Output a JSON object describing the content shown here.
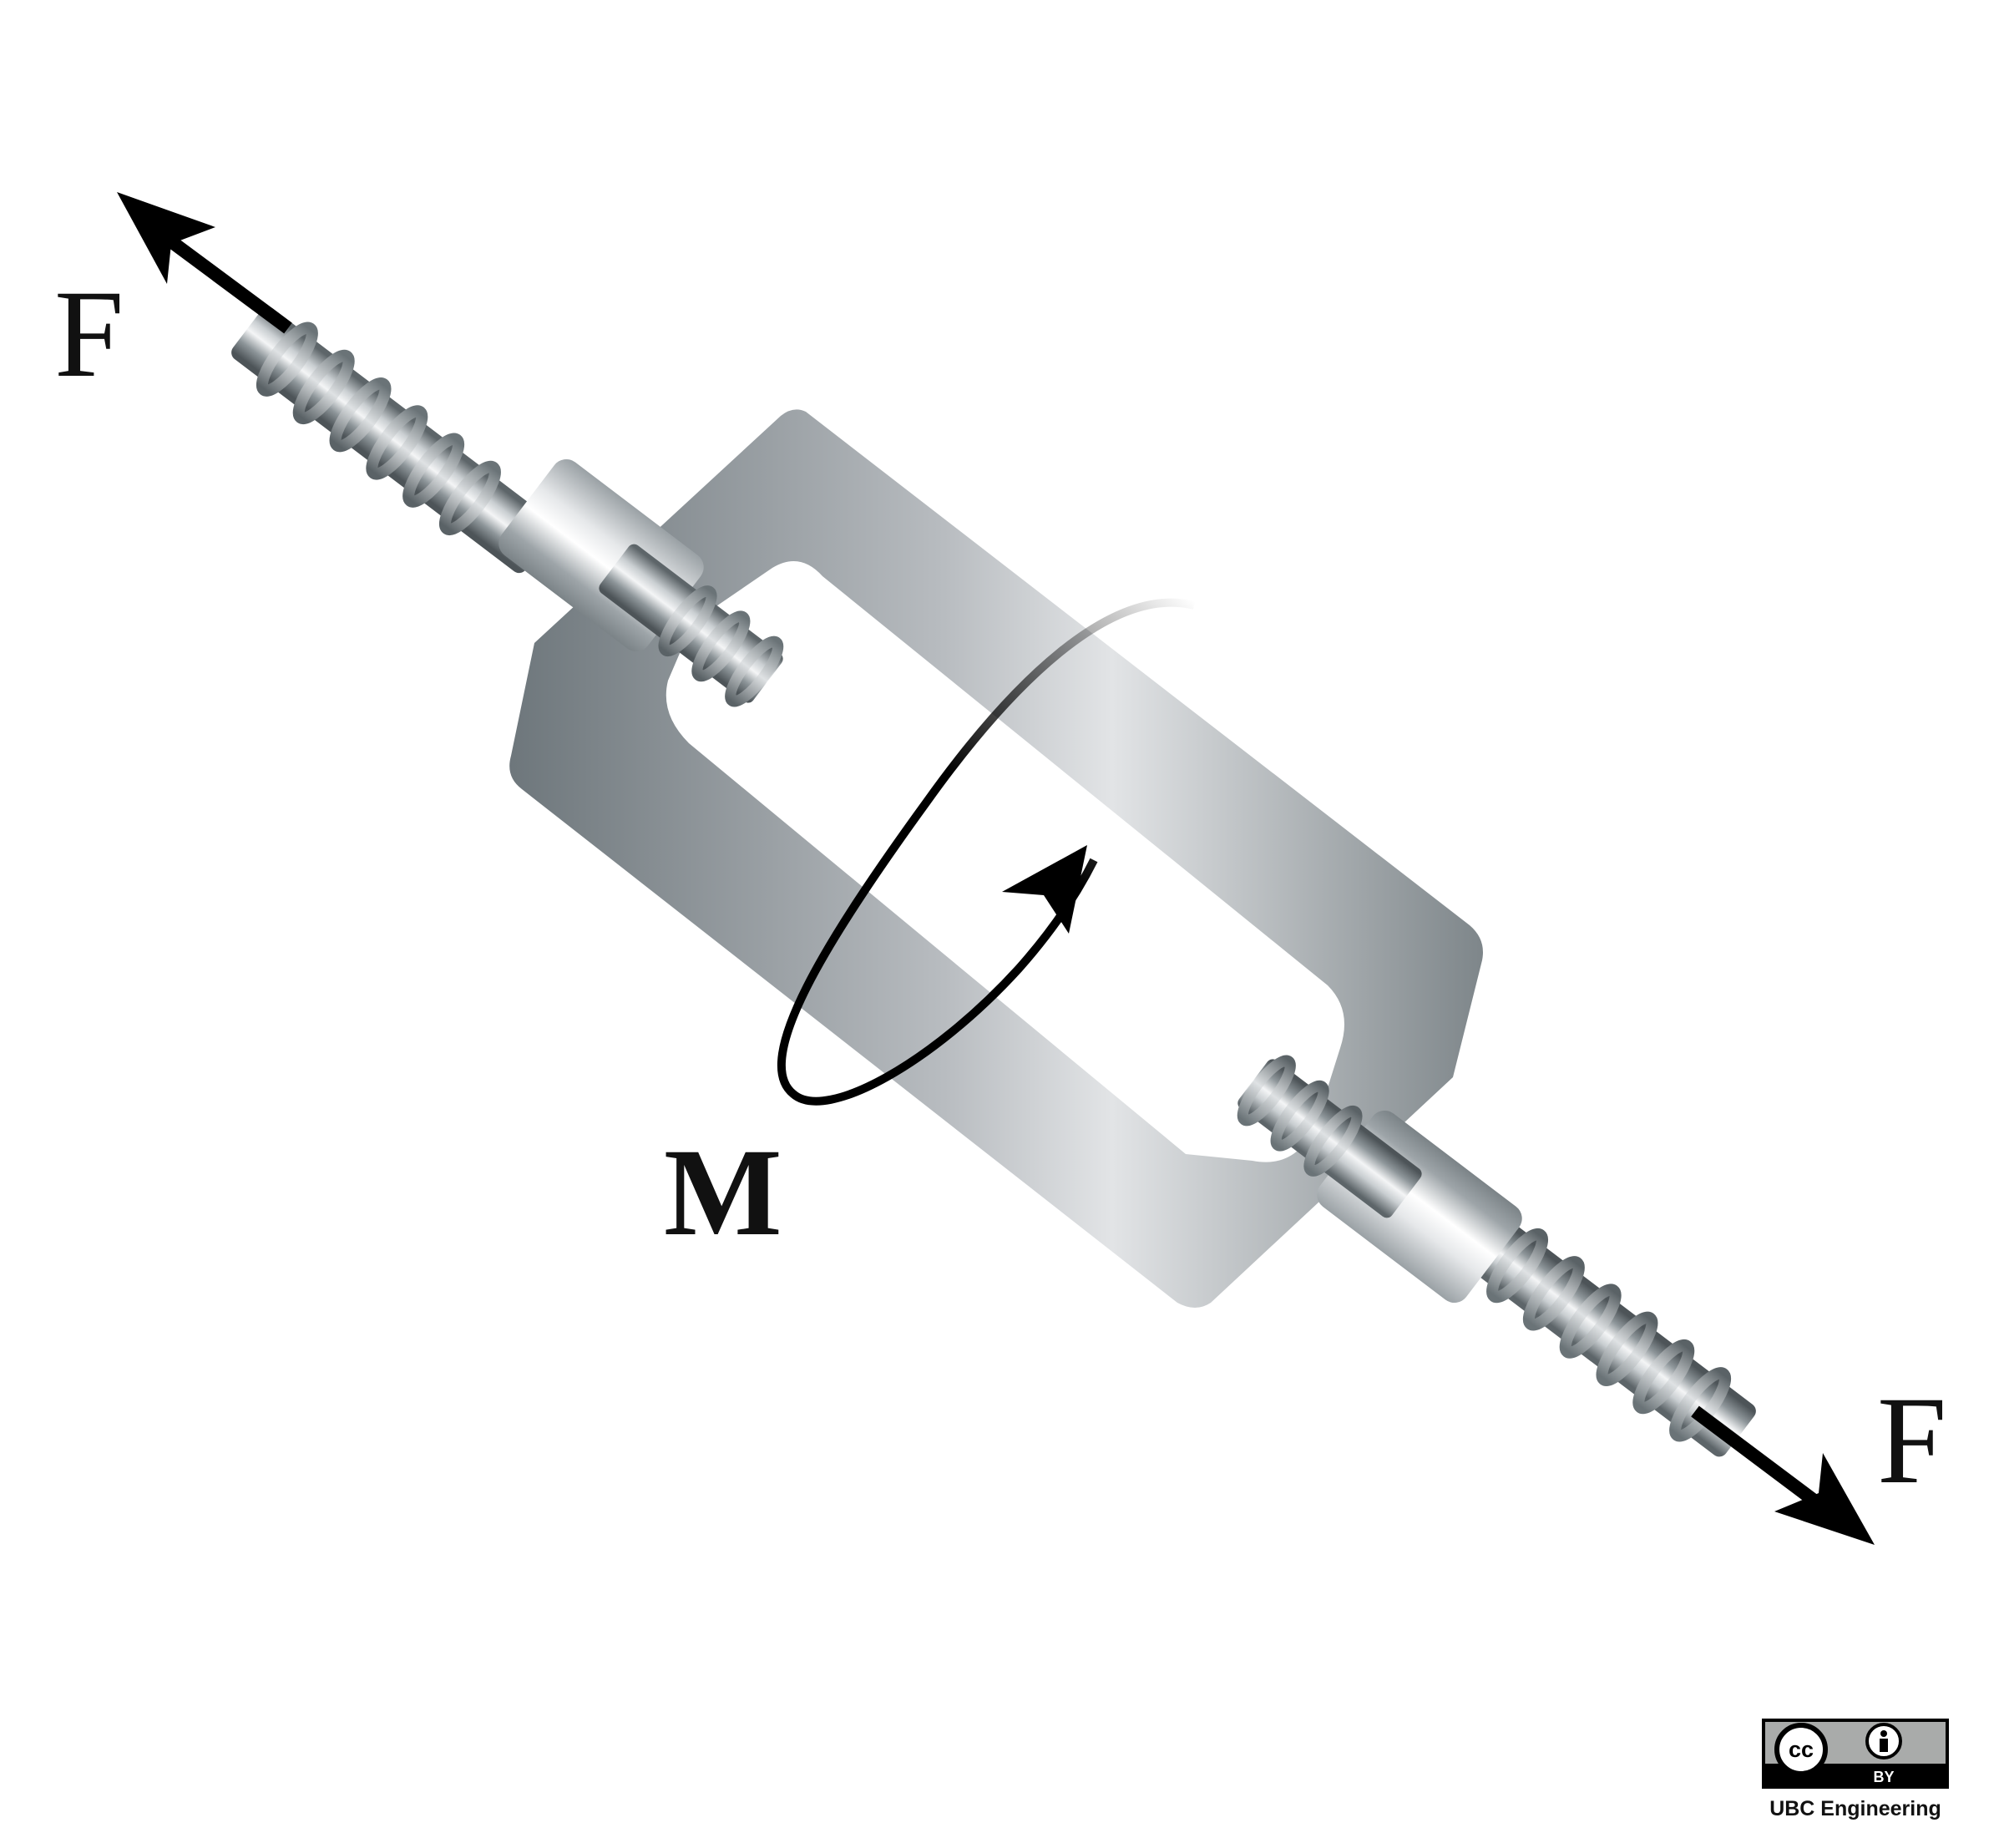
{
  "diagram": {
    "force_label_top": "F",
    "force_label_bottom": "F",
    "moment_label": "M",
    "colors": {
      "arrow": "#000000",
      "steel_dark": "#6f787d",
      "steel_light": "#dcdfe1",
      "background": "#ffffff"
    }
  },
  "license": {
    "cc_text": "cc",
    "by_text": "BY",
    "caption": "UBC Engineering"
  }
}
